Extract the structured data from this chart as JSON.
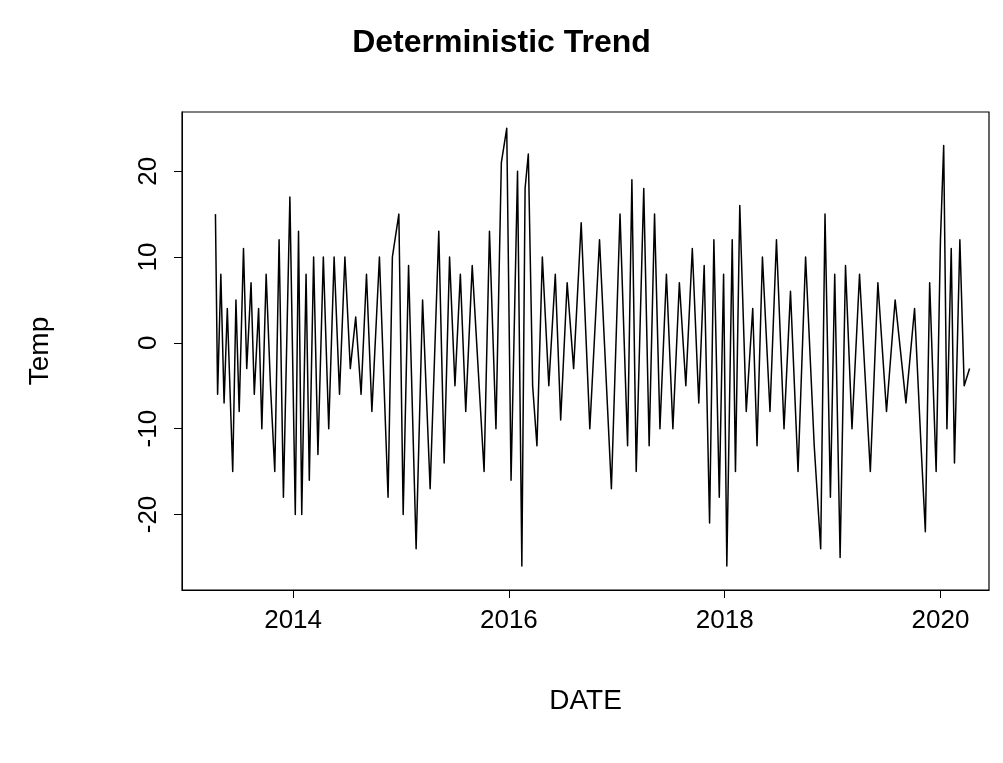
{
  "chart_data": {
    "type": "line",
    "title": "Deterministic Trend",
    "xlabel": "DATE",
    "ylabel": "Temp",
    "x": [
      2013.28,
      2013.3,
      2013.33,
      2013.36,
      2013.39,
      2013.44,
      2013.47,
      2013.5,
      2013.54,
      2013.57,
      2013.61,
      2013.64,
      2013.68,
      2013.71,
      2013.75,
      2013.79,
      2013.83,
      2013.87,
      2013.91,
      2013.97,
      2014.02,
      2014.05,
      2014.08,
      2014.12,
      2014.15,
      2014.19,
      2014.23,
      2014.28,
      2014.33,
      2014.38,
      2014.43,
      2014.48,
      2014.53,
      2014.58,
      2014.63,
      2014.68,
      2014.73,
      2014.8,
      2014.88,
      2014.92,
      2014.98,
      2015.02,
      2015.07,
      2015.14,
      2015.2,
      2015.27,
      2015.35,
      2015.4,
      2015.45,
      2015.5,
      2015.55,
      2015.6,
      2015.66,
      2015.77,
      2015.82,
      2015.88,
      2015.93,
      2015.98,
      2016.02,
      2016.08,
      2016.12,
      2016.15,
      2016.18,
      2016.22,
      2016.26,
      2016.31,
      2016.37,
      2016.43,
      2016.48,
      2016.54,
      2016.6,
      2016.67,
      2016.75,
      2016.84,
      2016.95,
      2017.03,
      2017.1,
      2017.14,
      2017.18,
      2017.25,
      2017.3,
      2017.35,
      2017.4,
      2017.46,
      2017.52,
      2017.58,
      2017.64,
      2017.7,
      2017.76,
      2017.81,
      2017.86,
      2017.9,
      2017.95,
      2017.99,
      2018.02,
      2018.07,
      2018.1,
      2018.14,
      2018.2,
      2018.26,
      2018.3,
      2018.35,
      2018.42,
      2018.48,
      2018.55,
      2018.61,
      2018.68,
      2018.75,
      2018.83,
      2018.89,
      2018.93,
      2018.98,
      2019.02,
      2019.07,
      2019.12,
      2019.18,
      2019.25,
      2019.35,
      2019.42,
      2019.5,
      2019.58,
      2019.68,
      2019.76,
      2019.82,
      2019.86,
      2019.9,
      2019.96,
      2020.0,
      2020.03,
      2020.06,
      2020.1,
      2020.13,
      2020.18,
      2020.22,
      2020.27
    ],
    "series": [
      {
        "color": "#000000",
        "values": [
          15,
          -6,
          8,
          -7,
          4,
          -15,
          5,
          -8,
          11,
          -3,
          7,
          -6,
          4,
          -10,
          8,
          -5,
          -15,
          12,
          -18,
          17,
          -20,
          13,
          -20,
          8,
          -16,
          10,
          -13,
          10,
          -10,
          10,
          -6,
          10,
          -3,
          3,
          -6,
          8,
          -8,
          10,
          -18,
          10,
          15,
          -20,
          9,
          -24,
          5,
          -17,
          13,
          -14,
          10,
          -5,
          8,
          -8,
          9,
          -15,
          13,
          -10,
          21,
          25,
          -16,
          20,
          -26,
          18,
          22,
          -5,
          -12,
          10,
          -5,
          8,
          -9,
          7,
          -3,
          14,
          -10,
          12,
          -17,
          15,
          -12,
          19,
          -15,
          18,
          -12,
          15,
          -10,
          8,
          -10,
          7,
          -5,
          11,
          -7,
          9,
          -21,
          12,
          -18,
          8,
          -26,
          12,
          -15,
          16,
          -8,
          4,
          -12,
          10,
          -8,
          12,
          -10,
          6,
          -15,
          10,
          -12,
          -24,
          15,
          -18,
          8,
          -25,
          9,
          -10,
          8,
          -15,
          7,
          -8,
          5,
          -7,
          4,
          -12,
          -22,
          7,
          -15,
          12,
          23,
          -10,
          11,
          -14,
          12,
          -5,
          -3
        ]
      }
    ],
    "xlim": [
      2012.97,
      2020.45
    ],
    "xticks": [
      2014,
      2016,
      2018,
      2020
    ],
    "ylim": [
      -28.8,
      26.9
    ],
    "yticks": [
      -20,
      -10,
      0,
      10,
      20
    ],
    "grid": false,
    "marker": "none",
    "line_style": "solid"
  }
}
